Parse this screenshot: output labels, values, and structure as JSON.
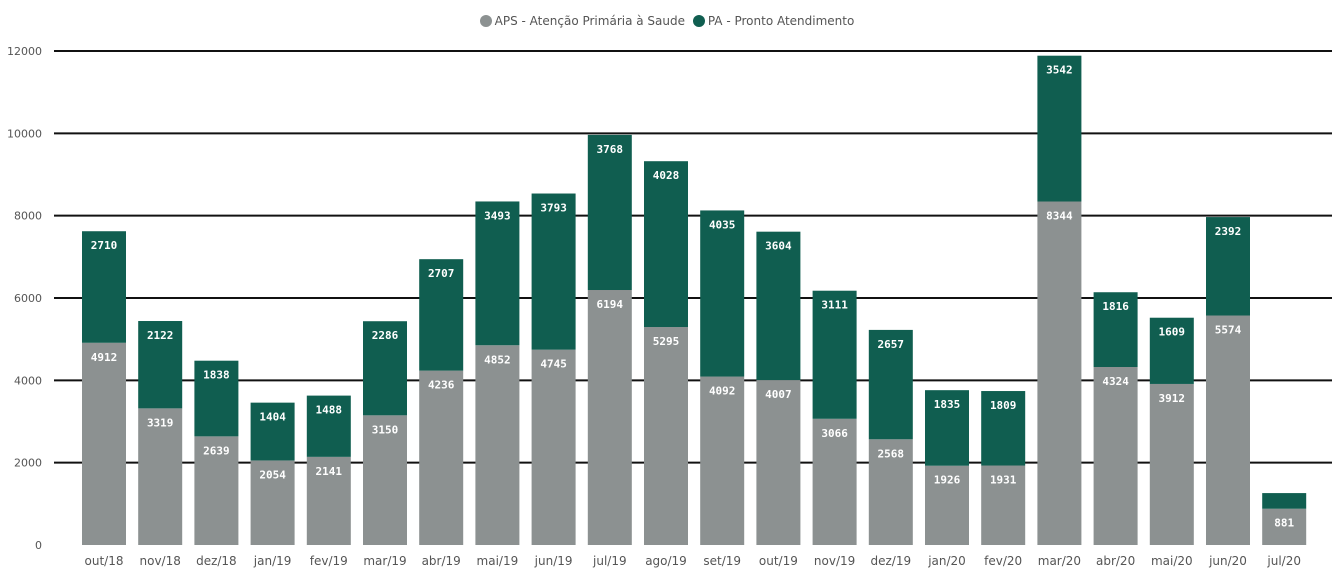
{
  "chart_data": {
    "type": "bar",
    "stacked": true,
    "categories": [
      "out/18",
      "nov/18",
      "dez/18",
      "jan/19",
      "fev/19",
      "mar/19",
      "abr/19",
      "mai/19",
      "jun/19",
      "jul/19",
      "ago/19",
      "set/19",
      "out/19",
      "nov/19",
      "dez/19",
      "jan/20",
      "fev/20",
      "mar/20",
      "abr/20",
      "mai/20",
      "jun/20",
      "jul/20"
    ],
    "series": [
      {
        "name": "APS - Atenção Primária à Saude",
        "color": "#8c9191",
        "values": [
          4912,
          3319,
          2639,
          2054,
          2141,
          3150,
          4236,
          4852,
          4745,
          6194,
          5295,
          4092,
          4007,
          3066,
          2568,
          1926,
          1931,
          8344,
          4324,
          3912,
          5574,
          881
        ],
        "labels": [
          "4912",
          "3319",
          "2639",
          "2054",
          "2141",
          "3150",
          "4236",
          "4852",
          "4745",
          "6194",
          "5295",
          "4092",
          "4007",
          "3066",
          "2568",
          "1926",
          "1931",
          "8344",
          "4324",
          "3912",
          "5574",
          "881"
        ]
      },
      {
        "name": "PA - Pronto Atendimento",
        "color": "#105e50",
        "values": [
          2710,
          2122,
          1838,
          1404,
          1488,
          2286,
          2707,
          3493,
          3793,
          3768,
          4028,
          4035,
          3604,
          3111,
          2657,
          1835,
          1809,
          3542,
          1816,
          1609,
          2392,
          380
        ],
        "labels": [
          "2710",
          "2122",
          "1838",
          "1404",
          "1488",
          "2286",
          "2707",
          "3493",
          "3793",
          "3768",
          "4028",
          "4035",
          "3604",
          "3111",
          "2657",
          "1835",
          "1809",
          "3542",
          "1816",
          "1609",
          "2392",
          ""
        ]
      }
    ],
    "yticks": [
      "0",
      "2000",
      "4000",
      "6000",
      "8000",
      "10000",
      "12000"
    ],
    "ylim": [
      0,
      12000
    ],
    "grid": true,
    "legend": "top-center",
    "title": "",
    "xlabel": "",
    "ylabel": ""
  }
}
